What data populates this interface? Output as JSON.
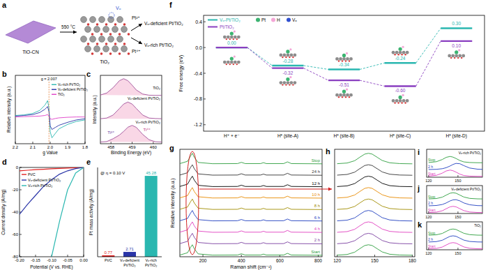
{
  "diagram": {
    "label": "a",
    "source": "TiO-CN",
    "condition": "550 °C",
    "product": "TiO₂",
    "vacancy": "Vₒ",
    "outputs": [
      {
        "ion": "Pt²⁺",
        "name": "Vₒ-deficient Pt/TiO₂"
      },
      {
        "ion": "Pt⁴⁺",
        "name": "Vₒ-rich Pt/TiO₂"
      }
    ]
  },
  "chart_data": [
    {
      "type": "line",
      "title": "b",
      "x_label": "g Value",
      "y_label": "Relative intensity (a.u.)",
      "x": [
        2.2,
        2.15,
        2.1,
        2.06,
        2.03,
        2.015,
        2.007,
        2.0,
        1.99,
        1.97,
        1.95,
        1.9,
        1.85,
        1.8
      ],
      "series": [
        {
          "name": "Vₒ-rich Pt/TiO₂",
          "color": "#2ab7b0",
          "values": [
            0.05,
            0.07,
            0.12,
            0.22,
            0.4,
            0.55,
            0.3,
            -0.5,
            -0.7,
            -0.55,
            -0.4,
            -0.25,
            -0.15,
            -0.1
          ]
        },
        {
          "name": "Vₒ-deficient Pt/TiO₂",
          "color": "#2a35a8",
          "values": [
            0.03,
            0.05,
            0.08,
            0.15,
            0.26,
            0.35,
            0.18,
            -0.3,
            -0.42,
            -0.35,
            -0.28,
            -0.18,
            -0.1,
            -0.06
          ]
        },
        {
          "name": "TiO₂",
          "color": "#e040c8",
          "values": [
            0,
            0.01,
            0.02,
            0.03,
            0.05,
            0.08,
            0.02,
            -0.06,
            -0.08,
            -0.05,
            -0.03,
            -0.01,
            0,
            0
          ]
        }
      ],
      "xlim": [
        2.2,
        1.8
      ],
      "xticks": [
        2.2,
        2.1,
        {
          "value": 2,
          "label": "2.0"
        },
        1.9,
        1.8
      ],
      "ylim": [
        -0.9,
        1.4
      ],
      "tick_labels": "x",
      "legend": "upper right",
      "annotations": [
        {
          "text": "g = 2.007",
          "x": 2.007
        }
      ]
    },
    {
      "type": "line",
      "title": "c",
      "x_label": "Binding Energy (eV)",
      "y_label": "Intensity (a.u.)",
      "x": [
        457.5,
        457.8,
        458.1,
        458.4,
        458.6,
        458.8,
        459.0,
        459.2,
        459.5,
        459.8,
        460.1,
        460.4
      ],
      "series": [
        {
          "name": "TiO₂",
          "color": "#a0509a",
          "values": [
            2.82,
            2.94,
            3.26,
            3.68,
            3.8,
            3.68,
            3.41,
            3.12,
            2.88,
            2.81,
            2.8,
            2.8
          ]
        },
        {
          "name": "Vₒ-deficient Pt/TiO₂",
          "color": "#a0509a",
          "values": [
            1.4,
            1.44,
            1.62,
            2.01,
            2.28,
            2.4,
            2.28,
            2.01,
            1.62,
            1.44,
            1.41,
            1.4
          ]
        },
        {
          "name": "Vₒ-rich Pt/TiO₂",
          "color": "#a0509a",
          "values": [
            0,
            0.03,
            0.2,
            0.42,
            0.64,
            0.89,
            1,
            0.88,
            0.46,
            0.14,
            0.02,
            0
          ]
        }
      ],
      "xlim": [
        457.5,
        460.4
      ],
      "xticks": [
        458,
        459,
        460
      ],
      "ylim": [
        -0.1,
        4.0
      ],
      "tick_labels": "x",
      "annotations": [
        {
          "text": "Ti³⁺",
          "x": 458.0
        },
        {
          "text": "Ti⁴⁺",
          "x": 459.7
        }
      ]
    },
    {
      "type": "line",
      "title": "d",
      "x_label": "Potential (V vs. RHE)",
      "y_label": "Current density (A/mg)",
      "x": [
        -0.2,
        -0.175,
        -0.15,
        -0.125,
        -0.1,
        -0.075,
        -0.05,
        -0.025,
        0
      ],
      "series": [
        {
          "name": "Pt/C",
          "color": "#e02020",
          "values": [
            -3,
            -2.5,
            -2,
            -1.6,
            -1.2,
            -0.8,
            -0.5,
            -0.2,
            0
          ]
        },
        {
          "name": "Vₒ-deficient Pt/TiO₂",
          "color": "#2a35a8",
          "values": [
            -42,
            -33,
            -25,
            -17,
            -11,
            -6,
            -3,
            -1,
            0
          ]
        },
        {
          "name": "Vₒ-rich Pt/TiO₂",
          "color": "#2ab7b0",
          "values": [
            null,
            null,
            null,
            null,
            -80,
            -48,
            -20,
            -5,
            0
          ]
        }
      ],
      "xlim": [
        -0.2,
        0
      ],
      "xticks": [
        {
          "value": -0.2,
          "label": "-0.20"
        },
        {
          "value": -0.15,
          "label": "-0.15"
        },
        {
          "value": -0.1,
          "label": "-0.10"
        },
        {
          "value": -0.05,
          "label": "-0.05"
        },
        {
          "value": 0,
          "label": "0.00"
        }
      ],
      "ylim": [
        -80,
        0
      ],
      "yticks": [
        0,
        -20,
        -40,
        -60,
        -80
      ],
      "legend": "upper left"
    },
    {
      "type": "bar",
      "title": "e",
      "subtitle": "@ η = 0.10 V",
      "y_label": "Pt mass activity (A/mg)",
      "categories": [
        "Pt/C",
        "Vₒ-deficient Pt/TiO₂",
        "Vₒ-rich Pt/TiO₂"
      ],
      "values": [
        0.77,
        2.71,
        45.28
      ],
      "colors": [
        "#e02020",
        "#2a35a8",
        "#2ab7b0"
      ],
      "ylim": [
        0,
        50
      ],
      "data_labels": true,
      "tick_labels": "x"
    },
    {
      "type": "line",
      "title": "f",
      "y_label": "Free energy (eV)",
      "categories": [
        "H⁺ + e⁻",
        "H* (site-A)",
        "H* (site-B)",
        "H* (site-C)",
        "H* (site-D)"
      ],
      "series": [
        {
          "name": "Vₒ-Pt/TiO₂",
          "color": "#2ab7b0",
          "values": [
            0,
            -0.28,
            -0.34,
            -0.24,
            0.3
          ],
          "value_labels": [
            "0.00",
            "-0.28",
            "-0.34",
            "-0.24",
            "0.30"
          ]
        },
        {
          "name": "Pt/TiO₂",
          "color": "#8a3fc0",
          "values": [
            0,
            -0.32,
            -0.51,
            -0.6,
            0.1
          ],
          "value_labels": [
            null,
            "-0.32",
            "-0.51",
            "-0.60",
            "0.10"
          ]
        }
      ],
      "ylim": [
        -1.3,
        0.5
      ],
      "yticks": [
        0.4,
        {
          "value": 0,
          "label": "0.0"
        },
        -0.4,
        -0.8,
        -1.2
      ],
      "data_labels": true,
      "line_style": "dashed",
      "legend": "upper left",
      "annotations": [
        {
          "text": "Pt",
          "color": "#3cb371"
        },
        {
          "text": "H",
          "color": "#f4a6d7"
        },
        {
          "text": "Vₒ",
          "color": "#3050d0"
        }
      ]
    },
    {
      "type": "line",
      "title": "g",
      "x_label": "Raman shift (cm⁻¹)",
      "y_label": "Relative intensity (a.u.)",
      "x": [
        80,
        120,
        135,
        145,
        155,
        175,
        250,
        380,
        400,
        420,
        500,
        515,
        530,
        620,
        640,
        660,
        820
      ],
      "series": [
        {
          "name": "Start",
          "color": "#2e9e3e",
          "values": [
            0.05,
            0.25,
            0.7,
            0.95,
            0.6,
            0.15,
            0.04,
            0.05,
            0.16,
            0.05,
            0.05,
            0.13,
            0.05,
            0.05,
            0.2,
            0.05,
            0.03
          ]
        },
        {
          "name": "2 h",
          "color": "#7b3fa0",
          "values": [
            1.05,
            1.25,
            1.7,
            1.95,
            1.6,
            1.15,
            1.04,
            1.05,
            1.16,
            1.05,
            1.05,
            1.13,
            1.05,
            1.05,
            1.2,
            1.05,
            1.03
          ]
        },
        {
          "name": "4 h",
          "color": "#e040c0",
          "values": [
            2.05,
            2.25,
            2.7,
            2.95,
            2.6,
            2.15,
            2.04,
            2.05,
            2.16,
            2.05,
            2.05,
            2.13,
            2.05,
            2.05,
            2.2,
            2.05,
            2.03
          ]
        },
        {
          "name": "6 h",
          "color": "#2040c0",
          "values": [
            3.05,
            3.25,
            3.7,
            3.95,
            3.6,
            3.15,
            3.04,
            3.05,
            3.16,
            3.05,
            3.05,
            3.13,
            3.05,
            3.05,
            3.2,
            3.05,
            3.03
          ]
        },
        {
          "name": "8 h",
          "color": "#a08c00",
          "values": [
            4.05,
            4.25,
            4.7,
            4.95,
            4.6,
            4.15,
            4.04,
            4.05,
            4.16,
            4.05,
            4.05,
            4.13,
            4.05,
            4.05,
            4.2,
            4.05,
            4.03
          ]
        },
        {
          "name": "10 h",
          "color": "#e88a00",
          "values": [
            5.05,
            5.25,
            5.7,
            5.95,
            5.6,
            5.15,
            5.04,
            5.05,
            5.16,
            5.05,
            5.05,
            5.13,
            5.05,
            5.05,
            5.2,
            5.05,
            5.03
          ]
        },
        {
          "name": "12 h",
          "color": "#000000",
          "values": [
            6.05,
            6.25,
            6.7,
            6.95,
            6.6,
            6.15,
            6.04,
            6.05,
            6.16,
            6.05,
            6.05,
            6.13,
            6.05,
            6.05,
            6.2,
            6.05,
            6.03
          ]
        },
        {
          "name": "24 h",
          "color": "#333333",
          "values": [
            7.05,
            7.25,
            7.7,
            7.95,
            7.6,
            7.15,
            7.04,
            7.05,
            7.16,
            7.05,
            7.05,
            7.13,
            7.05,
            7.05,
            7.2,
            7.05,
            7.03
          ]
        },
        {
          "name": "Stop",
          "color": "#2e9e3e",
          "values": [
            8.05,
            8.25,
            8.7,
            8.95,
            8.6,
            8.15,
            8.04,
            8.05,
            8.16,
            8.05,
            8.05,
            8.13,
            8.05,
            8.05,
            8.2,
            8.05,
            8.03
          ]
        }
      ],
      "xlim": [
        80,
        820
      ],
      "xticks": [
        200,
        400,
        600,
        800
      ],
      "ylim": [
        -0.1,
        9.3
      ],
      "tick_labels": "x"
    },
    {
      "type": "line",
      "title": "h",
      "x": [
        120,
        128,
        134,
        138,
        142,
        145,
        148,
        152,
        156,
        162,
        170,
        180
      ],
      "series": [
        {
          "color": "#2e9e3e",
          "values": [
            0.04,
            0.1,
            0.3,
            0.6,
            0.88,
            0.95,
            0.88,
            0.6,
            0.32,
            0.12,
            0.05,
            0.03
          ]
        },
        {
          "color": "#7b3fa0",
          "values": [
            1.04,
            1.1,
            1.3,
            1.6,
            1.88,
            1.95,
            1.88,
            1.6,
            1.32,
            1.12,
            1.05,
            1.03
          ]
        },
        {
          "color": "#e040c0",
          "values": [
            2.04,
            2.1,
            2.3,
            2.6,
            2.88,
            2.95,
            2.88,
            2.6,
            2.32,
            2.12,
            2.05,
            2.03
          ]
        },
        {
          "color": "#2040c0",
          "values": [
            3.04,
            3.1,
            3.3,
            3.6,
            3.88,
            3.95,
            3.88,
            3.6,
            3.32,
            3.12,
            3.05,
            3.03
          ]
        },
        {
          "color": "#a08c00",
          "values": [
            4.04,
            4.1,
            4.3,
            4.6,
            4.88,
            4.95,
            4.88,
            4.6,
            4.32,
            4.12,
            4.05,
            4.03
          ]
        },
        {
          "color": "#e88a00",
          "values": [
            5.04,
            5.1,
            5.3,
            5.6,
            5.88,
            5.95,
            5.88,
            5.6,
            5.32,
            5.12,
            5.05,
            5.03
          ]
        },
        {
          "color": "#000000",
          "values": [
            6.04,
            6.1,
            6.3,
            6.6,
            6.88,
            6.95,
            6.88,
            6.6,
            6.32,
            6.12,
            6.05,
            6.03
          ]
        },
        {
          "color": "#333333",
          "values": [
            7.04,
            7.1,
            7.3,
            7.6,
            7.88,
            7.95,
            7.88,
            7.6,
            7.32,
            7.12,
            7.05,
            7.03
          ]
        },
        {
          "color": "#2e9e3e",
          "values": [
            8.04,
            8.1,
            8.3,
            8.6,
            8.88,
            8.95,
            8.88,
            8.6,
            8.32,
            8.12,
            8.05,
            8.03
          ]
        }
      ],
      "xlim": [
        118,
        182
      ],
      "xticks": [
        120,
        150,
        180
      ],
      "ylim": [
        -0.1,
        9.3
      ],
      "tick_labels": "x"
    },
    {
      "type": "line",
      "title": "i",
      "subtitle": "Vₒ-rich Pt/TiO₂",
      "x": [
        120,
        128,
        134,
        138,
        142,
        145,
        148,
        152,
        156,
        162,
        170,
        180
      ],
      "series": [
        {
          "name": "Start",
          "color": "#e040c0",
          "values": [
            0.06,
            0.18,
            0.5,
            0.82,
            0.95,
            0.85,
            0.65,
            0.35,
            0.15,
            0.06,
            0.03,
            0.02
          ]
        },
        {
          "name": "2 h",
          "color": "#2040c0",
          "values": [
            1.03,
            1.06,
            1.15,
            1.3,
            1.55,
            1.78,
            1.93,
            1.88,
            1.6,
            1.25,
            1.08,
            1.03
          ]
        },
        {
          "name": "Stop",
          "color": "#2e9e3e",
          "values": [
            2.06,
            2.18,
            2.5,
            2.82,
            2.95,
            2.85,
            2.65,
            2.35,
            2.15,
            2.06,
            2.03,
            2.02
          ]
        }
      ],
      "xlim": [
        118,
        175
      ],
      "xticks": [
        120,
        150
      ],
      "ylim": [
        -0.1,
        4.0
      ],
      "tick_labels": "x"
    },
    {
      "type": "line",
      "title": "j",
      "subtitle": "Vₒ-deficient Pt/TiO₂",
      "x": [
        120,
        128,
        134,
        138,
        142,
        145,
        148,
        152,
        156,
        162,
        170,
        180
      ],
      "series": [
        {
          "name": "Start",
          "color": "#e040c0",
          "values": [
            0.04,
            0.1,
            0.3,
            0.6,
            0.88,
            0.95,
            0.88,
            0.6,
            0.32,
            0.12,
            0.05,
            0.03
          ]
        },
        {
          "name": "2 h",
          "color": "#2040c0",
          "values": [
            1.03,
            1.08,
            1.22,
            1.45,
            1.75,
            1.9,
            1.93,
            1.75,
            1.45,
            1.18,
            1.06,
            1.03
          ]
        },
        {
          "name": "Stop",
          "color": "#2e9e3e",
          "values": [
            2.04,
            2.1,
            2.3,
            2.6,
            2.88,
            2.95,
            2.88,
            2.6,
            2.32,
            2.12,
            2.05,
            2.03
          ]
        }
      ],
      "xlim": [
        118,
        175
      ],
      "xticks": [
        120,
        150
      ],
      "ylim": [
        -0.1,
        4.0
      ],
      "tick_labels": "x"
    },
    {
      "type": "line",
      "title": "k",
      "subtitle": "TiO₂",
      "x": [
        120,
        128,
        134,
        138,
        142,
        145,
        148,
        152,
        156,
        162,
        170,
        180
      ],
      "series": [
        {
          "name": "Start",
          "color": "#e040c0",
          "values": [
            0.04,
            0.1,
            0.3,
            0.6,
            0.88,
            0.95,
            0.88,
            0.6,
            0.32,
            0.12,
            0.05,
            0.03
          ]
        },
        {
          "name": "2 h",
          "color": "#2040c0",
          "values": [
            1.04,
            1.1,
            1.3,
            1.6,
            1.88,
            1.95,
            1.88,
            1.6,
            1.32,
            1.12,
            1.05,
            1.03
          ]
        },
        {
          "name": "Stop",
          "color": "#2e9e3e",
          "values": [
            2.04,
            2.1,
            2.3,
            2.6,
            2.88,
            2.95,
            2.88,
            2.6,
            2.32,
            2.12,
            2.05,
            2.03
          ]
        }
      ],
      "xlim": [
        118,
        175
      ],
      "xticks": [
        120,
        150
      ],
      "ylim": [
        -0.1,
        4.0
      ],
      "tick_labels": "x"
    }
  ]
}
